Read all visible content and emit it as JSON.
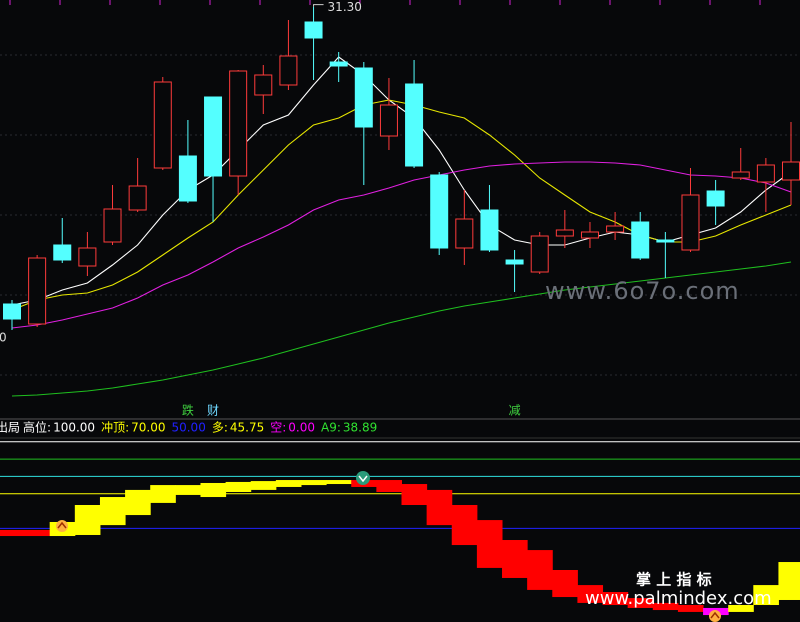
{
  "chart_data": {
    "type": "candlestick",
    "ylim": [
      19.5,
      31.5
    ],
    "open": [
      22.38,
      21.78,
      24.15,
      23.52,
      24.24,
      25.2,
      26.46,
      26.82,
      28.59,
      26.22,
      28.65,
      28.95,
      30.84,
      29.64,
      29.46,
      27.42,
      28.98,
      26.25,
      24.06,
      25.2,
      23.7,
      23.34,
      24.42,
      24.36,
      24.54,
      24.84,
      24.3,
      24.0,
      25.77,
      26.16,
      26.04,
      26.1
    ],
    "high": [
      22.5,
      23.85,
      24.96,
      24.54,
      25.95,
      26.76,
      29.19,
      27.9,
      28.59,
      29.4,
      29.55,
      30.9,
      31.3,
      29.94,
      29.64,
      29.16,
      29.7,
      26.34,
      25.8,
      25.95,
      24.0,
      24.54,
      25.2,
      24.84,
      25.14,
      25.14,
      24.54,
      26.46,
      26.1,
      27.06,
      26.76,
      27.84
    ],
    "low": [
      21.6,
      21.69,
      23.61,
      23.22,
      24.15,
      25.14,
      26.4,
      25.41,
      24.84,
      25.65,
      28.08,
      28.8,
      29.1,
      29.04,
      25.95,
      27.0,
      26.46,
      23.85,
      23.55,
      23.94,
      22.74,
      23.28,
      24.06,
      24.06,
      24.3,
      23.7,
      23.16,
      23.94,
      24.75,
      26.1,
      25.14,
      25.35
    ],
    "close": [
      21.93,
      23.76,
      23.7,
      24.06,
      25.23,
      25.92,
      29.04,
      25.47,
      26.22,
      29.37,
      29.25,
      29.82,
      30.36,
      29.52,
      27.69,
      28.35,
      26.52,
      24.06,
      24.93,
      24.0,
      23.58,
      24.42,
      24.6,
      24.54,
      24.72,
      23.76,
      24.24,
      25.65,
      25.32,
      26.34,
      26.55,
      26.64
    ],
    "up_color": "#ff3b3b",
    "down_color": "#54ffff",
    "high_labels": [
      null,
      null,
      null,
      null,
      null,
      null,
      null,
      null,
      null,
      null,
      null,
      null,
      "31.30",
      null,
      null,
      null,
      null,
      null,
      null,
      null,
      null,
      null,
      null,
      null,
      null,
      null,
      null,
      null,
      null,
      null,
      null,
      null
    ],
    "left_label": "0",
    "lines": [
      {
        "color": "#ffffff",
        "values": [
          22.35,
          22.5,
          22.8,
          23.01,
          23.55,
          24.15,
          25.05,
          25.8,
          26.25,
          27.0,
          27.75,
          28.05,
          28.95,
          29.79,
          29.25,
          28.5,
          27.96,
          27.0,
          25.8,
          24.75,
          24.3,
          24.15,
          24.15,
          24.36,
          24.54,
          24.45,
          24.24,
          24.45,
          24.66,
          25.14,
          25.8,
          26.34
        ]
      },
      {
        "color": "#e6e600",
        "values": [
          22.2,
          22.5,
          22.65,
          22.71,
          22.95,
          23.34,
          23.85,
          24.36,
          24.84,
          25.65,
          26.4,
          27.15,
          27.75,
          27.96,
          28.35,
          28.5,
          28.35,
          28.14,
          27.96,
          27.45,
          26.85,
          26.16,
          25.65,
          25.14,
          24.84,
          24.45,
          24.24,
          24.24,
          24.42,
          24.75,
          25.05,
          25.35
        ]
      },
      {
        "color": "#e020e0",
        "values": [
          21.66,
          21.75,
          21.9,
          22.08,
          22.26,
          22.56,
          22.95,
          23.25,
          23.64,
          24.06,
          24.39,
          24.75,
          25.2,
          25.5,
          25.65,
          25.86,
          26.1,
          26.25,
          26.4,
          26.52,
          26.58,
          26.61,
          26.64,
          26.64,
          26.61,
          26.55,
          26.4,
          26.25,
          26.22,
          26.16,
          26.01,
          25.74
        ]
      },
      {
        "color": "#1fbf1f",
        "values": [
          19.62,
          19.65,
          19.71,
          19.77,
          19.86,
          19.98,
          20.1,
          20.25,
          20.4,
          20.58,
          20.76,
          20.97,
          21.18,
          21.39,
          21.6,
          21.81,
          21.99,
          22.17,
          22.32,
          22.44,
          22.56,
          22.68,
          22.8,
          22.89,
          22.98,
          23.07,
          23.16,
          23.25,
          23.34,
          23.43,
          23.52,
          23.64
        ]
      }
    ],
    "signals": [
      null,
      null,
      null,
      null,
      null,
      null,
      null,
      {
        "text": "跌",
        "color": "#3fd13f"
      },
      {
        "text": "财",
        "color": "#6fd8ff"
      },
      null,
      null,
      null,
      null,
      null,
      null,
      null,
      null,
      null,
      null,
      null,
      {
        "text": "减",
        "color": "#3fd13f"
      },
      null,
      null,
      null,
      null,
      null,
      null,
      null,
      null,
      null,
      null,
      null
    ],
    "indicator": {
      "title": "出局",
      "ylim": [
        -4,
        101
      ],
      "items": [
        {
          "name": "高位:",
          "value": 100,
          "value_label": "100.00",
          "color": "#ffffff",
          "line": true
        },
        {
          "name": "冲顶:",
          "value": 70,
          "value_label": "70.00",
          "color": "#ffff00",
          "line": true
        },
        {
          "value": 50,
          "value_label": "50.00",
          "color": "#2020ff",
          "line": true
        },
        {
          "name": "多:",
          "value": 45.75,
          "value_label": "45.75",
          "color": "#ffff00",
          "line": false
        },
        {
          "name": "空:",
          "value": 0,
          "value_label": "0.00",
          "color": "#ff00ff",
          "line": false
        },
        {
          "name": "A9:",
          "value": 38.89,
          "value_label": "38.89",
          "color": "#30e030",
          "line": false
        }
      ],
      "ref_lines": [
        {
          "value": 90,
          "color": "#20c020"
        },
        {
          "value": 80,
          "color": "#30e0e0"
        }
      ],
      "upper": [
        49.1,
        49.1,
        53.7,
        63.5,
        68.1,
        72.2,
        75.0,
        75.0,
        76.2,
        76.8,
        77.3,
        77.9,
        77.9,
        77.9,
        77.9,
        77.9,
        75.6,
        72.2,
        63.5,
        54.8,
        43.3,
        37.5,
        26.0,
        17.3,
        13.3,
        9.8,
        7.0,
        5.8,
        4.1,
        5.8,
        17.3,
        30.6
      ],
      "lower": [
        45.6,
        45.6,
        45.6,
        46.2,
        51.9,
        57.7,
        64.7,
        69.3,
        68.1,
        71.0,
        72.2,
        73.9,
        75.0,
        75.6,
        73.9,
        71.0,
        63.5,
        51.9,
        40.4,
        27.2,
        21.4,
        14.5,
        10.4,
        7.0,
        5.8,
        4.1,
        2.9,
        1.8,
        0.0,
        1.8,
        5.8,
        8.7
      ],
      "colors": [
        "#ff0000",
        "#ff0000",
        "#ffff00",
        "#ffff00",
        "#ffff00",
        "#ffff00",
        "#ffff00",
        "#ffff00",
        "#ffff00",
        "#ffff00",
        "#ffff00",
        "#ffff00",
        "#ffff00",
        "#ffff00",
        "#ff0000",
        "#ff0000",
        "#ff0000",
        "#ff0000",
        "#ff0000",
        "#ff0000",
        "#ff0000",
        "#ff0000",
        "#ff0000",
        "#ff0000",
        "#ff0000",
        "#ff0000",
        "#ff0000",
        "#ff0000",
        "#ff00ff",
        "#ffff00",
        "#ffff00",
        "#ffff00"
      ]
    },
    "watermarks": [
      "www.6o7o.com",
      "掌 上 指 标",
      "www.palmindex.com"
    ]
  }
}
